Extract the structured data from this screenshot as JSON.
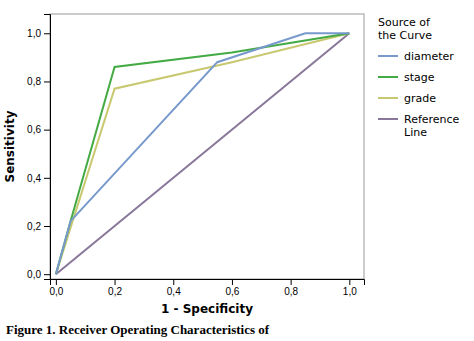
{
  "chart_data": {
    "type": "line",
    "xlabel": "1 - Specificity",
    "ylabel": "Sensitivity",
    "legend_title": "Source of\nthe Curve",
    "caption": "Figure 1. Receiver Operating Characteristics of",
    "series": [
      {
        "name": "diameter",
        "color": "#7799cc",
        "x": [
          0.0,
          0.05,
          0.55,
          0.85,
          1.0
        ],
        "values": [
          0.0,
          0.22,
          0.88,
          1.0,
          1.0
        ]
      },
      {
        "name": "stage",
        "color": "#44aa44",
        "x": [
          0.0,
          0.05,
          0.2,
          0.6,
          1.0
        ],
        "values": [
          0.0,
          0.22,
          0.86,
          0.92,
          1.0
        ]
      },
      {
        "name": "grade",
        "color": "#c8c870",
        "x": [
          0.0,
          0.2,
          0.6,
          1.0
        ],
        "values": [
          0.0,
          0.77,
          0.88,
          1.0
        ]
      },
      {
        "name": "Reference\nLine",
        "color": "#887799",
        "x": [
          0.0,
          1.0
        ],
        "values": [
          0.0,
          1.0
        ]
      }
    ],
    "xlim": [
      -0.02,
      1.05
    ],
    "ylim": [
      -0.02,
      1.08
    ],
    "xticks": [
      {
        "value": 0.0,
        "label": "0,0"
      },
      {
        "value": 0.2,
        "label": "0,2"
      },
      {
        "value": 0.4,
        "label": "0,4"
      },
      {
        "value": 0.6,
        "label": "0,6"
      },
      {
        "value": 0.8,
        "label": "0,8"
      },
      {
        "value": 1.0,
        "label": "1,0"
      }
    ],
    "yticks": [
      {
        "value": 0.0,
        "label": "0,0"
      },
      {
        "value": 0.2,
        "label": "0,2"
      },
      {
        "value": 0.4,
        "label": "0,4"
      },
      {
        "value": 0.6,
        "label": "0,6"
      },
      {
        "value": 0.8,
        "label": "0,8"
      },
      {
        "value": 1.0,
        "label": "1,0"
      }
    ],
    "grid": false,
    "legend": "right"
  }
}
